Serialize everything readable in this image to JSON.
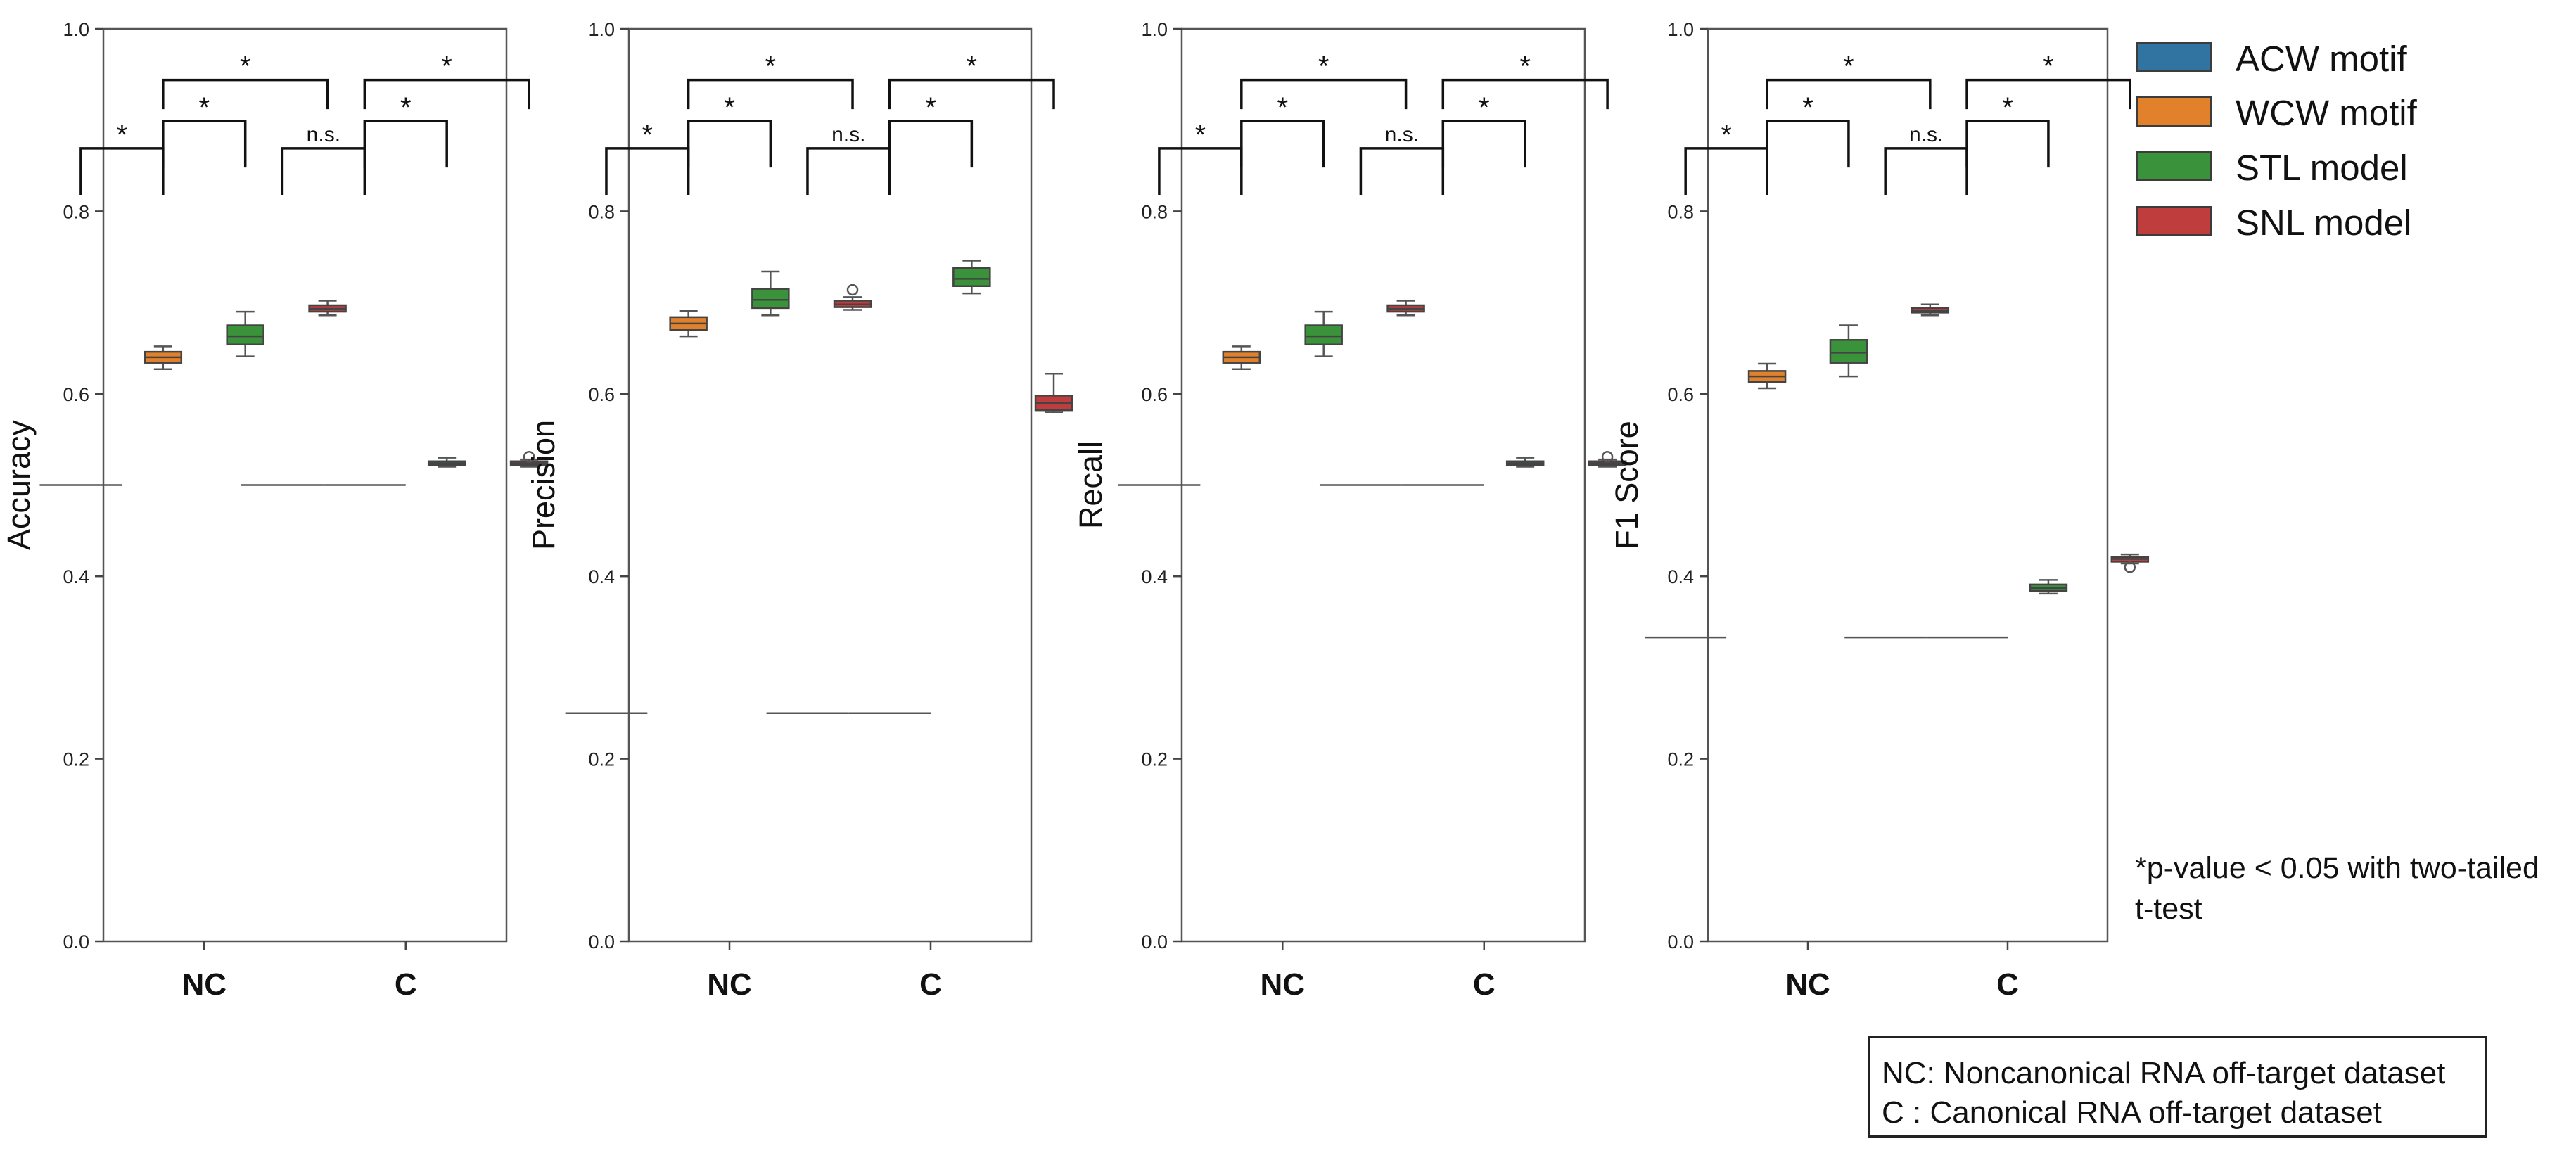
{
  "chart_data": [
    {
      "type": "box",
      "ylabel": "Accuracy",
      "ylim": [
        0.0,
        1.0
      ],
      "yticks": [
        "0.0",
        "0.2",
        "0.4",
        "0.6",
        "0.8",
        "1.0"
      ],
      "categories": [
        "NC",
        "C"
      ],
      "series": [
        {
          "name": "ACW motif",
          "groups": [
            {
              "min": 0.5,
              "q1": 0.5,
              "median": 0.5,
              "q3": 0.5,
              "max": 0.5,
              "outliers": []
            },
            {
              "min": 0.5,
              "q1": 0.5,
              "median": 0.5,
              "q3": 0.5,
              "max": 0.5,
              "outliers": []
            }
          ]
        },
        {
          "name": "WCW motif",
          "groups": [
            {
              "min": 0.627,
              "q1": 0.634,
              "median": 0.64,
              "q3": 0.646,
              "max": 0.652,
              "outliers": []
            },
            {
              "min": 0.5,
              "q1": 0.5,
              "median": 0.5,
              "q3": 0.5,
              "max": 0.5,
              "outliers": []
            }
          ]
        },
        {
          "name": "STL model",
          "groups": [
            {
              "min": 0.641,
              "q1": 0.654,
              "median": 0.663,
              "q3": 0.675,
              "max": 0.69,
              "outliers": []
            },
            {
              "min": 0.52,
              "q1": 0.522,
              "median": 0.524,
              "q3": 0.526,
              "max": 0.53,
              "outliers": []
            }
          ]
        },
        {
          "name": "SNL model",
          "groups": [
            {
              "min": 0.686,
              "q1": 0.69,
              "median": 0.693,
              "q3": 0.697,
              "max": 0.702,
              "outliers": []
            },
            {
              "min": 0.52,
              "q1": 0.522,
              "median": 0.524,
              "q3": 0.526,
              "max": 0.528,
              "outliers": [
                0.531
              ]
            }
          ]
        }
      ],
      "significance": [
        {
          "group": "NC",
          "pairs": [
            [
              "WCW motif",
              "ACW motif",
              "*"
            ],
            [
              "WCW motif",
              "STL model",
              "*"
            ],
            [
              "WCW motif",
              "SNL model",
              "*"
            ]
          ]
        },
        {
          "group": "C",
          "pairs": [
            [
              "WCW motif",
              "ACW motif",
              "n.s."
            ],
            [
              "WCW motif",
              "STL model",
              "*"
            ],
            [
              "WCW motif",
              "SNL model",
              "*"
            ]
          ]
        }
      ]
    },
    {
      "type": "box",
      "ylabel": "Precision",
      "ylim": [
        0.0,
        1.0
      ],
      "yticks": [
        "0.0",
        "0.2",
        "0.4",
        "0.6",
        "0.8",
        "1.0"
      ],
      "categories": [
        "NC",
        "C"
      ],
      "series": [
        {
          "name": "ACW motif",
          "groups": [
            {
              "min": 0.25,
              "q1": 0.25,
              "median": 0.25,
              "q3": 0.25,
              "max": 0.25,
              "outliers": []
            },
            {
              "min": 0.25,
              "q1": 0.25,
              "median": 0.25,
              "q3": 0.25,
              "max": 0.25,
              "outliers": []
            }
          ]
        },
        {
          "name": "WCW motif",
          "groups": [
            {
              "min": 0.663,
              "q1": 0.67,
              "median": 0.677,
              "q3": 0.684,
              "max": 0.691,
              "outliers": []
            },
            {
              "min": 0.25,
              "q1": 0.25,
              "median": 0.25,
              "q3": 0.25,
              "max": 0.25,
              "outliers": []
            }
          ]
        },
        {
          "name": "STL model",
          "groups": [
            {
              "min": 0.686,
              "q1": 0.694,
              "median": 0.703,
              "q3": 0.715,
              "max": 0.734,
              "outliers": []
            },
            {
              "min": 0.71,
              "q1": 0.718,
              "median": 0.726,
              "q3": 0.738,
              "max": 0.746,
              "outliers": []
            }
          ]
        },
        {
          "name": "SNL model",
          "groups": [
            {
              "min": 0.692,
              "q1": 0.695,
              "median": 0.698,
              "q3": 0.702,
              "max": 0.706,
              "outliers": [
                0.714
              ]
            },
            {
              "min": 0.58,
              "q1": 0.582,
              "median": 0.59,
              "q3": 0.598,
              "max": 0.622,
              "outliers": []
            }
          ]
        }
      ],
      "significance": [
        {
          "group": "NC",
          "pairs": [
            [
              "WCW motif",
              "ACW motif",
              "*"
            ],
            [
              "WCW motif",
              "STL model",
              "*"
            ],
            [
              "WCW motif",
              "SNL model",
              "*"
            ]
          ]
        },
        {
          "group": "C",
          "pairs": [
            [
              "WCW motif",
              "ACW motif",
              "n.s."
            ],
            [
              "WCW motif",
              "STL model",
              "*"
            ],
            [
              "WCW motif",
              "SNL model",
              "*"
            ]
          ]
        }
      ]
    },
    {
      "type": "box",
      "ylabel": "Recall",
      "ylim": [
        0.0,
        1.0
      ],
      "yticks": [
        "0.0",
        "0.2",
        "0.4",
        "0.6",
        "0.8",
        "1.0"
      ],
      "categories": [
        "NC",
        "C"
      ],
      "series": [
        {
          "name": "ACW motif",
          "groups": [
            {
              "min": 0.5,
              "q1": 0.5,
              "median": 0.5,
              "q3": 0.5,
              "max": 0.5,
              "outliers": []
            },
            {
              "min": 0.5,
              "q1": 0.5,
              "median": 0.5,
              "q3": 0.5,
              "max": 0.5,
              "outliers": []
            }
          ]
        },
        {
          "name": "WCW motif",
          "groups": [
            {
              "min": 0.627,
              "q1": 0.634,
              "median": 0.64,
              "q3": 0.646,
              "max": 0.652,
              "outliers": []
            },
            {
              "min": 0.5,
              "q1": 0.5,
              "median": 0.5,
              "q3": 0.5,
              "max": 0.5,
              "outliers": []
            }
          ]
        },
        {
          "name": "STL model",
          "groups": [
            {
              "min": 0.641,
              "q1": 0.654,
              "median": 0.663,
              "q3": 0.675,
              "max": 0.69,
              "outliers": []
            },
            {
              "min": 0.52,
              "q1": 0.522,
              "median": 0.524,
              "q3": 0.526,
              "max": 0.53,
              "outliers": []
            }
          ]
        },
        {
          "name": "SNL model",
          "groups": [
            {
              "min": 0.686,
              "q1": 0.69,
              "median": 0.693,
              "q3": 0.697,
              "max": 0.702,
              "outliers": []
            },
            {
              "min": 0.52,
              "q1": 0.522,
              "median": 0.524,
              "q3": 0.526,
              "max": 0.528,
              "outliers": [
                0.531
              ]
            }
          ]
        }
      ],
      "significance": [
        {
          "group": "NC",
          "pairs": [
            [
              "WCW motif",
              "ACW motif",
              "*"
            ],
            [
              "WCW motif",
              "STL model",
              "*"
            ],
            [
              "WCW motif",
              "SNL model",
              "*"
            ]
          ]
        },
        {
          "group": "C",
          "pairs": [
            [
              "WCW motif",
              "ACW motif",
              "n.s."
            ],
            [
              "WCW motif",
              "STL model",
              "*"
            ],
            [
              "WCW motif",
              "SNL model",
              "*"
            ]
          ]
        }
      ]
    },
    {
      "type": "box",
      "ylabel": "F1 Score",
      "ylim": [
        0.0,
        1.0
      ],
      "yticks": [
        "0.0",
        "0.2",
        "0.4",
        "0.6",
        "0.8",
        "1.0"
      ],
      "categories": [
        "NC",
        "C"
      ],
      "series": [
        {
          "name": "ACW motif",
          "groups": [
            {
              "min": 0.333,
              "q1": 0.333,
              "median": 0.333,
              "q3": 0.333,
              "max": 0.333,
              "outliers": []
            },
            {
              "min": 0.333,
              "q1": 0.333,
              "median": 0.333,
              "q3": 0.333,
              "max": 0.333,
              "outliers": []
            }
          ]
        },
        {
          "name": "WCW motif",
          "groups": [
            {
              "min": 0.606,
              "q1": 0.613,
              "median": 0.619,
              "q3": 0.625,
              "max": 0.633,
              "outliers": []
            },
            {
              "min": 0.333,
              "q1": 0.333,
              "median": 0.333,
              "q3": 0.333,
              "max": 0.333,
              "outliers": []
            }
          ]
        },
        {
          "name": "STL model",
          "groups": [
            {
              "min": 0.619,
              "q1": 0.634,
              "median": 0.645,
              "q3": 0.659,
              "max": 0.675,
              "outliers": []
            },
            {
              "min": 0.381,
              "q1": 0.384,
              "median": 0.387,
              "q3": 0.391,
              "max": 0.396,
              "outliers": []
            }
          ]
        },
        {
          "name": "SNL model",
          "groups": [
            {
              "min": 0.686,
              "q1": 0.689,
              "median": 0.691,
              "q3": 0.694,
              "max": 0.698,
              "outliers": []
            },
            {
              "min": 0.414,
              "q1": 0.416,
              "median": 0.419,
              "q3": 0.421,
              "max": 0.424,
              "outliers": [
                0.41
              ]
            }
          ]
        }
      ],
      "significance": [
        {
          "group": "NC",
          "pairs": [
            [
              "WCW motif",
              "ACW motif",
              "*"
            ],
            [
              "WCW motif",
              "STL model",
              "*"
            ],
            [
              "WCW motif",
              "SNL model",
              "*"
            ]
          ]
        },
        {
          "group": "C",
          "pairs": [
            [
              "WCW motif",
              "ACW motif",
              "n.s."
            ],
            [
              "WCW motif",
              "STL model",
              "*"
            ],
            [
              "WCW motif",
              "SNL model",
              "*"
            ]
          ]
        }
      ]
    }
  ],
  "legend": {
    "items": [
      {
        "label": "ACW motif",
        "color": "#3274a1"
      },
      {
        "label": "WCW motif",
        "color": "#e1812c"
      },
      {
        "label": "STL model",
        "color": "#3a923a"
      },
      {
        "label": "SNL model",
        "color": "#c03d3e"
      }
    ]
  },
  "note": "*p-value < 0.05 with two-tailed t-test",
  "abbreviations": {
    "line1": "NC: Noncanonical RNA off-target dataset",
    "line2": "C : Canonical RNA off-target dataset"
  }
}
